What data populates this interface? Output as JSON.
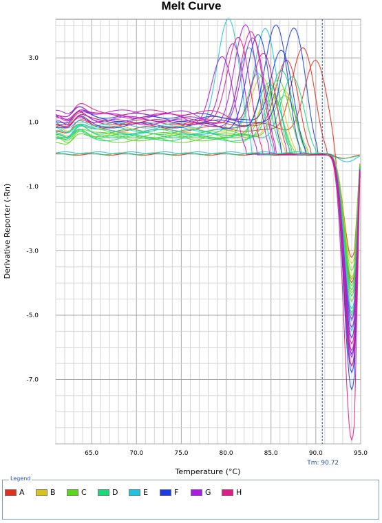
{
  "chart_data": {
    "type": "line",
    "title": "Melt Curve",
    "xlabel": "Temperature (°C)",
    "ylabel": "Derivative Reporter (-Rn)",
    "xlim": [
      61,
      95
    ],
    "ylim": [
      -9.0,
      4.2
    ],
    "x_ticks": [
      65.0,
      70.0,
      75.0,
      80.0,
      85.0,
      90.0,
      95.0
    ],
    "x_tick_labels": [
      "65.0",
      "70.0",
      "75.0",
      "80.0",
      "85.0",
      "90.0",
      "95.0"
    ],
    "y_ticks": [
      3.0,
      1.0,
      -1.0,
      -3.0,
      -5.0,
      -7.0
    ],
    "y_tick_labels": [
      "3.0",
      "1.0",
      "-1.0",
      "-3.0",
      "-5.0",
      "-7.0"
    ],
    "grid": true,
    "marker": {
      "x": 90.72,
      "label": "Tm: 90.72"
    },
    "legend_title": "Legend",
    "legend": [
      {
        "label": "A",
        "color": "#e0301e"
      },
      {
        "label": "B",
        "color": "#d8c21c"
      },
      {
        "label": "C",
        "color": "#59d81c"
      },
      {
        "label": "D",
        "color": "#1cd87a"
      },
      {
        "label": "E",
        "color": "#1cc4e0"
      },
      {
        "label": "F",
        "color": "#1c3ce0"
      },
      {
        "label": "G",
        "color": "#a91ce0"
      },
      {
        "label": "H",
        "color": "#e01c8a"
      }
    ],
    "series": [
      {
        "color": "#e0301e",
        "base": 0.8,
        "peak_x": 88.6,
        "peak_y": 3.3,
        "min_y": -3.2,
        "flat": false
      },
      {
        "color": "#e0301e",
        "base": 1.0,
        "peak_x": 86.8,
        "peak_y": 2.9,
        "min_y": -4.0,
        "flat": false
      },
      {
        "color": "#e0301e",
        "base": 0.9,
        "peak_x": 90.0,
        "peak_y": 2.9,
        "min_y": -6.6,
        "flat": false
      },
      {
        "color": "#d8c21c",
        "base": 0.7,
        "peak_x": 85.2,
        "peak_y": 2.2,
        "min_y": -3.4,
        "flat": false
      },
      {
        "color": "#d8c21c",
        "base": 0.6,
        "peak_x": 86.4,
        "peak_y": 2.0,
        "min_y": -4.3,
        "flat": false
      },
      {
        "color": "#d8c21c",
        "base": 0.8,
        "peak_x": 84.0,
        "peak_y": 2.4,
        "min_y": -3.8,
        "flat": false
      },
      {
        "color": "#59d81c",
        "base": 0.5,
        "peak_x": 84.6,
        "peak_y": 2.1,
        "min_y": -3.6,
        "flat": false
      },
      {
        "color": "#59d81c",
        "base": 0.6,
        "peak_x": 85.8,
        "peak_y": 2.3,
        "min_y": -4.1,
        "flat": false
      },
      {
        "color": "#59d81c",
        "base": 0.7,
        "peak_x": 86.6,
        "peak_y": 1.8,
        "min_y": -4.6,
        "flat": false
      },
      {
        "color": "#59d81c",
        "base": 0.45,
        "peak_x": 85.0,
        "peak_y": 1.9,
        "min_y": -3.9,
        "flat": false
      },
      {
        "color": "#1cd87a",
        "base": 0.6,
        "peak_x": 83.6,
        "peak_y": 2.5,
        "min_y": -4.4,
        "flat": false
      },
      {
        "color": "#1cd87a",
        "base": 0.5,
        "peak_x": 86.2,
        "peak_y": 2.6,
        "min_y": -4.9,
        "flat": false
      },
      {
        "color": "#1cd87a",
        "base": 0.7,
        "peak_x": 84.8,
        "peak_y": 2.2,
        "min_y": -4.2,
        "flat": false
      },
      {
        "color": "#1cd87a",
        "base": 0.55,
        "peak_x": 87.4,
        "peak_y": 2.4,
        "min_y": -5.0,
        "flat": false
      },
      {
        "color": "#1cc4e0",
        "base": 0.9,
        "peak_x": 80.3,
        "peak_y": 4.2,
        "min_y": -5.2,
        "flat": false
      },
      {
        "color": "#1cc4e0",
        "base": 0.8,
        "peak_x": 84.4,
        "peak_y": 3.9,
        "min_y": -5.5,
        "flat": false
      },
      {
        "color": "#1cc4e0",
        "base": 0.7,
        "peak_x": 82.6,
        "peak_y": 3.3,
        "min_y": -4.8,
        "flat": false
      },
      {
        "color": "#1c3ce0",
        "base": 1.0,
        "peak_x": 85.6,
        "peak_y": 4.0,
        "min_y": -7.3,
        "flat": false
      },
      {
        "color": "#1c3ce0",
        "base": 1.1,
        "peak_x": 87.6,
        "peak_y": 3.9,
        "min_y": -6.2,
        "flat": false
      },
      {
        "color": "#1c3ce0",
        "base": 0.9,
        "peak_x": 83.6,
        "peak_y": 3.7,
        "min_y": -5.7,
        "flat": false
      },
      {
        "color": "#1c3ce0",
        "base": 1.2,
        "peak_x": 86.2,
        "peak_y": 3.2,
        "min_y": -6.8,
        "flat": false
      },
      {
        "color": "#a91ce0",
        "base": 1.1,
        "peak_x": 82.2,
        "peak_y": 4.0,
        "min_y": -5.4,
        "flat": false
      },
      {
        "color": "#a91ce0",
        "base": 1.3,
        "peak_x": 80.8,
        "peak_y": 3.4,
        "min_y": -5.9,
        "flat": false
      },
      {
        "color": "#a91ce0",
        "base": 1.0,
        "peak_x": 83.0,
        "peak_y": 3.6,
        "min_y": -6.3,
        "flat": false
      },
      {
        "color": "#a91ce0",
        "base": 1.2,
        "peak_x": 79.6,
        "peak_y": 3.0,
        "min_y": -5.1,
        "flat": false
      },
      {
        "color": "#e01c8a",
        "base": 1.2,
        "peak_x": 81.4,
        "peak_y": 3.6,
        "min_y": -6.1,
        "flat": false
      },
      {
        "color": "#e01c8a",
        "base": 1.0,
        "peak_x": 82.8,
        "peak_y": 3.8,
        "min_y": -8.9,
        "flat": false
      },
      {
        "color": "#e01c8a",
        "base": 1.3,
        "peak_x": 84.2,
        "peak_y": 3.1,
        "min_y": -6.6,
        "flat": false
      },
      {
        "color": "#1cc4e0",
        "base": 0.05,
        "peak_x": 0,
        "peak_y": 0,
        "min_y": -0.25,
        "flat": true
      },
      {
        "color": "#e0301e",
        "base": 0.0,
        "peak_x": 0,
        "peak_y": 0,
        "min_y": -0.1,
        "flat": true
      },
      {
        "color": "#1cd87a",
        "base": 0.02,
        "peak_x": 0,
        "peak_y": 0,
        "min_y": -0.15,
        "flat": true
      }
    ]
  }
}
